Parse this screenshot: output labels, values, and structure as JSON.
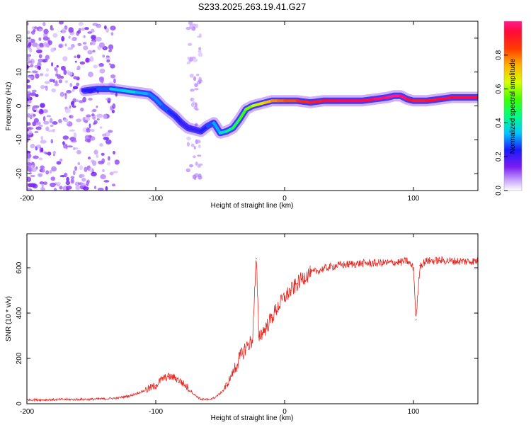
{
  "figure": {
    "title": "S233.2025.263.19.41.G27"
  },
  "colors": {
    "snr_line": "#e8251f",
    "axis": "#000000",
    "spectrum_low": "#9b5cf5",
    "spectrum_mid": "#00d8ff",
    "spectrum_high": "#ff1a1a"
  },
  "chart_data": [
    {
      "type": "heatmap",
      "name": "spectrogram",
      "xlabel": "Height of straight line (km)",
      "ylabel": "Frequency (Hz)",
      "xlim": [
        -200,
        150
      ],
      "ylim": [
        -25,
        25
      ],
      "xticks": [
        -200,
        -100,
        0,
        100
      ],
      "xtick_labels": [
        "-200",
        "-100",
        "0",
        "100"
      ],
      "yticks": [
        -20,
        -10,
        0,
        10,
        20
      ],
      "ytick_labels": [
        "-20",
        "-10",
        "0",
        "10",
        "20"
      ],
      "ridge": {
        "x": [
          -155,
          -145,
          -135,
          -125,
          -115,
          -105,
          -100,
          -95,
          -90,
          -85,
          -80,
          -75,
          -70,
          -65,
          -60,
          -55,
          -50,
          -45,
          -40,
          -35,
          -30,
          -25,
          -20,
          -15,
          -10,
          -5,
          0,
          10,
          20,
          30,
          40,
          50,
          60,
          70,
          80,
          85,
          90,
          95,
          100,
          110,
          120,
          130,
          140,
          150
        ],
        "freq": [
          4.5,
          5,
          5,
          4.5,
          4,
          3.5,
          2,
          0,
          -1.5,
          -3,
          -5,
          -6.5,
          -7,
          -7.5,
          -6,
          -5,
          -8,
          -7.5,
          -6.5,
          -4,
          -1,
          0,
          0.5,
          1,
          1.5,
          1.5,
          1.5,
          1.5,
          1,
          1.5,
          1.5,
          1.5,
          1.5,
          2,
          2.5,
          3,
          3,
          2,
          1.5,
          1.5,
          2,
          2.5,
          2.5,
          2.5
        ],
        "amplitude": [
          0.2,
          0.25,
          0.3,
          0.4,
          0.35,
          0.3,
          0.3,
          0.3,
          0.25,
          0.25,
          0.2,
          0.2,
          0.2,
          0.2,
          0.25,
          0.3,
          0.35,
          0.4,
          0.45,
          0.5,
          0.55,
          0.6,
          0.65,
          0.7,
          0.75,
          0.8,
          0.8,
          0.85,
          0.9,
          0.9,
          0.95,
          0.95,
          0.95,
          0.95,
          1.0,
          1.0,
          1.0,
          0.95,
          0.9,
          0.9,
          0.95,
          0.95,
          0.95,
          0.95
        ]
      },
      "colorbar": {
        "label": "Normalized spectral amplitude",
        "range": [
          0,
          1
        ],
        "ticks": [
          0.0,
          0.2,
          0.4,
          0.6,
          0.8
        ],
        "tick_labels": [
          "0.0",
          "0.2",
          "0.4",
          "0.6",
          "0.8"
        ]
      }
    },
    {
      "type": "line",
      "name": "snr",
      "xlabel": "Height of straight line (km)",
      "ylabel": "SNR (10 * v/v)",
      "xlim": [
        -200,
        150
      ],
      "ylim": [
        0,
        750
      ],
      "xticks": [
        -200,
        -100,
        0,
        100
      ],
      "xtick_labels": [
        "-200",
        "-100",
        "0",
        "100"
      ],
      "yticks": [
        0,
        200,
        400,
        600
      ],
      "ytick_labels": [
        "0",
        "200",
        "400",
        "600"
      ],
      "series": [
        {
          "name": "SNR",
          "x": [
            -200,
            -190,
            -180,
            -170,
            -160,
            -150,
            -140,
            -130,
            -120,
            -110,
            -100,
            -95,
            -90,
            -85,
            -80,
            -75,
            -70,
            -65,
            -60,
            -55,
            -50,
            -45,
            -40,
            -35,
            -30,
            -25,
            -22,
            -20,
            -15,
            -10,
            -5,
            0,
            5,
            10,
            15,
            20,
            30,
            40,
            50,
            60,
            70,
            80,
            90,
            95,
            100,
            102,
            105,
            110,
            120,
            130,
            140,
            150
          ],
          "values": [
            18,
            17,
            18,
            19,
            19,
            20,
            22,
            25,
            35,
            55,
            80,
            110,
            120,
            115,
            95,
            70,
            40,
            20,
            18,
            25,
            45,
            80,
            140,
            200,
            250,
            280,
            640,
            300,
            330,
            380,
            430,
            470,
            500,
            530,
            560,
            575,
            595,
            610,
            615,
            620,
            620,
            622,
            625,
            630,
            600,
            370,
            610,
            630,
            632,
            630,
            628,
            630
          ]
        }
      ]
    }
  ]
}
